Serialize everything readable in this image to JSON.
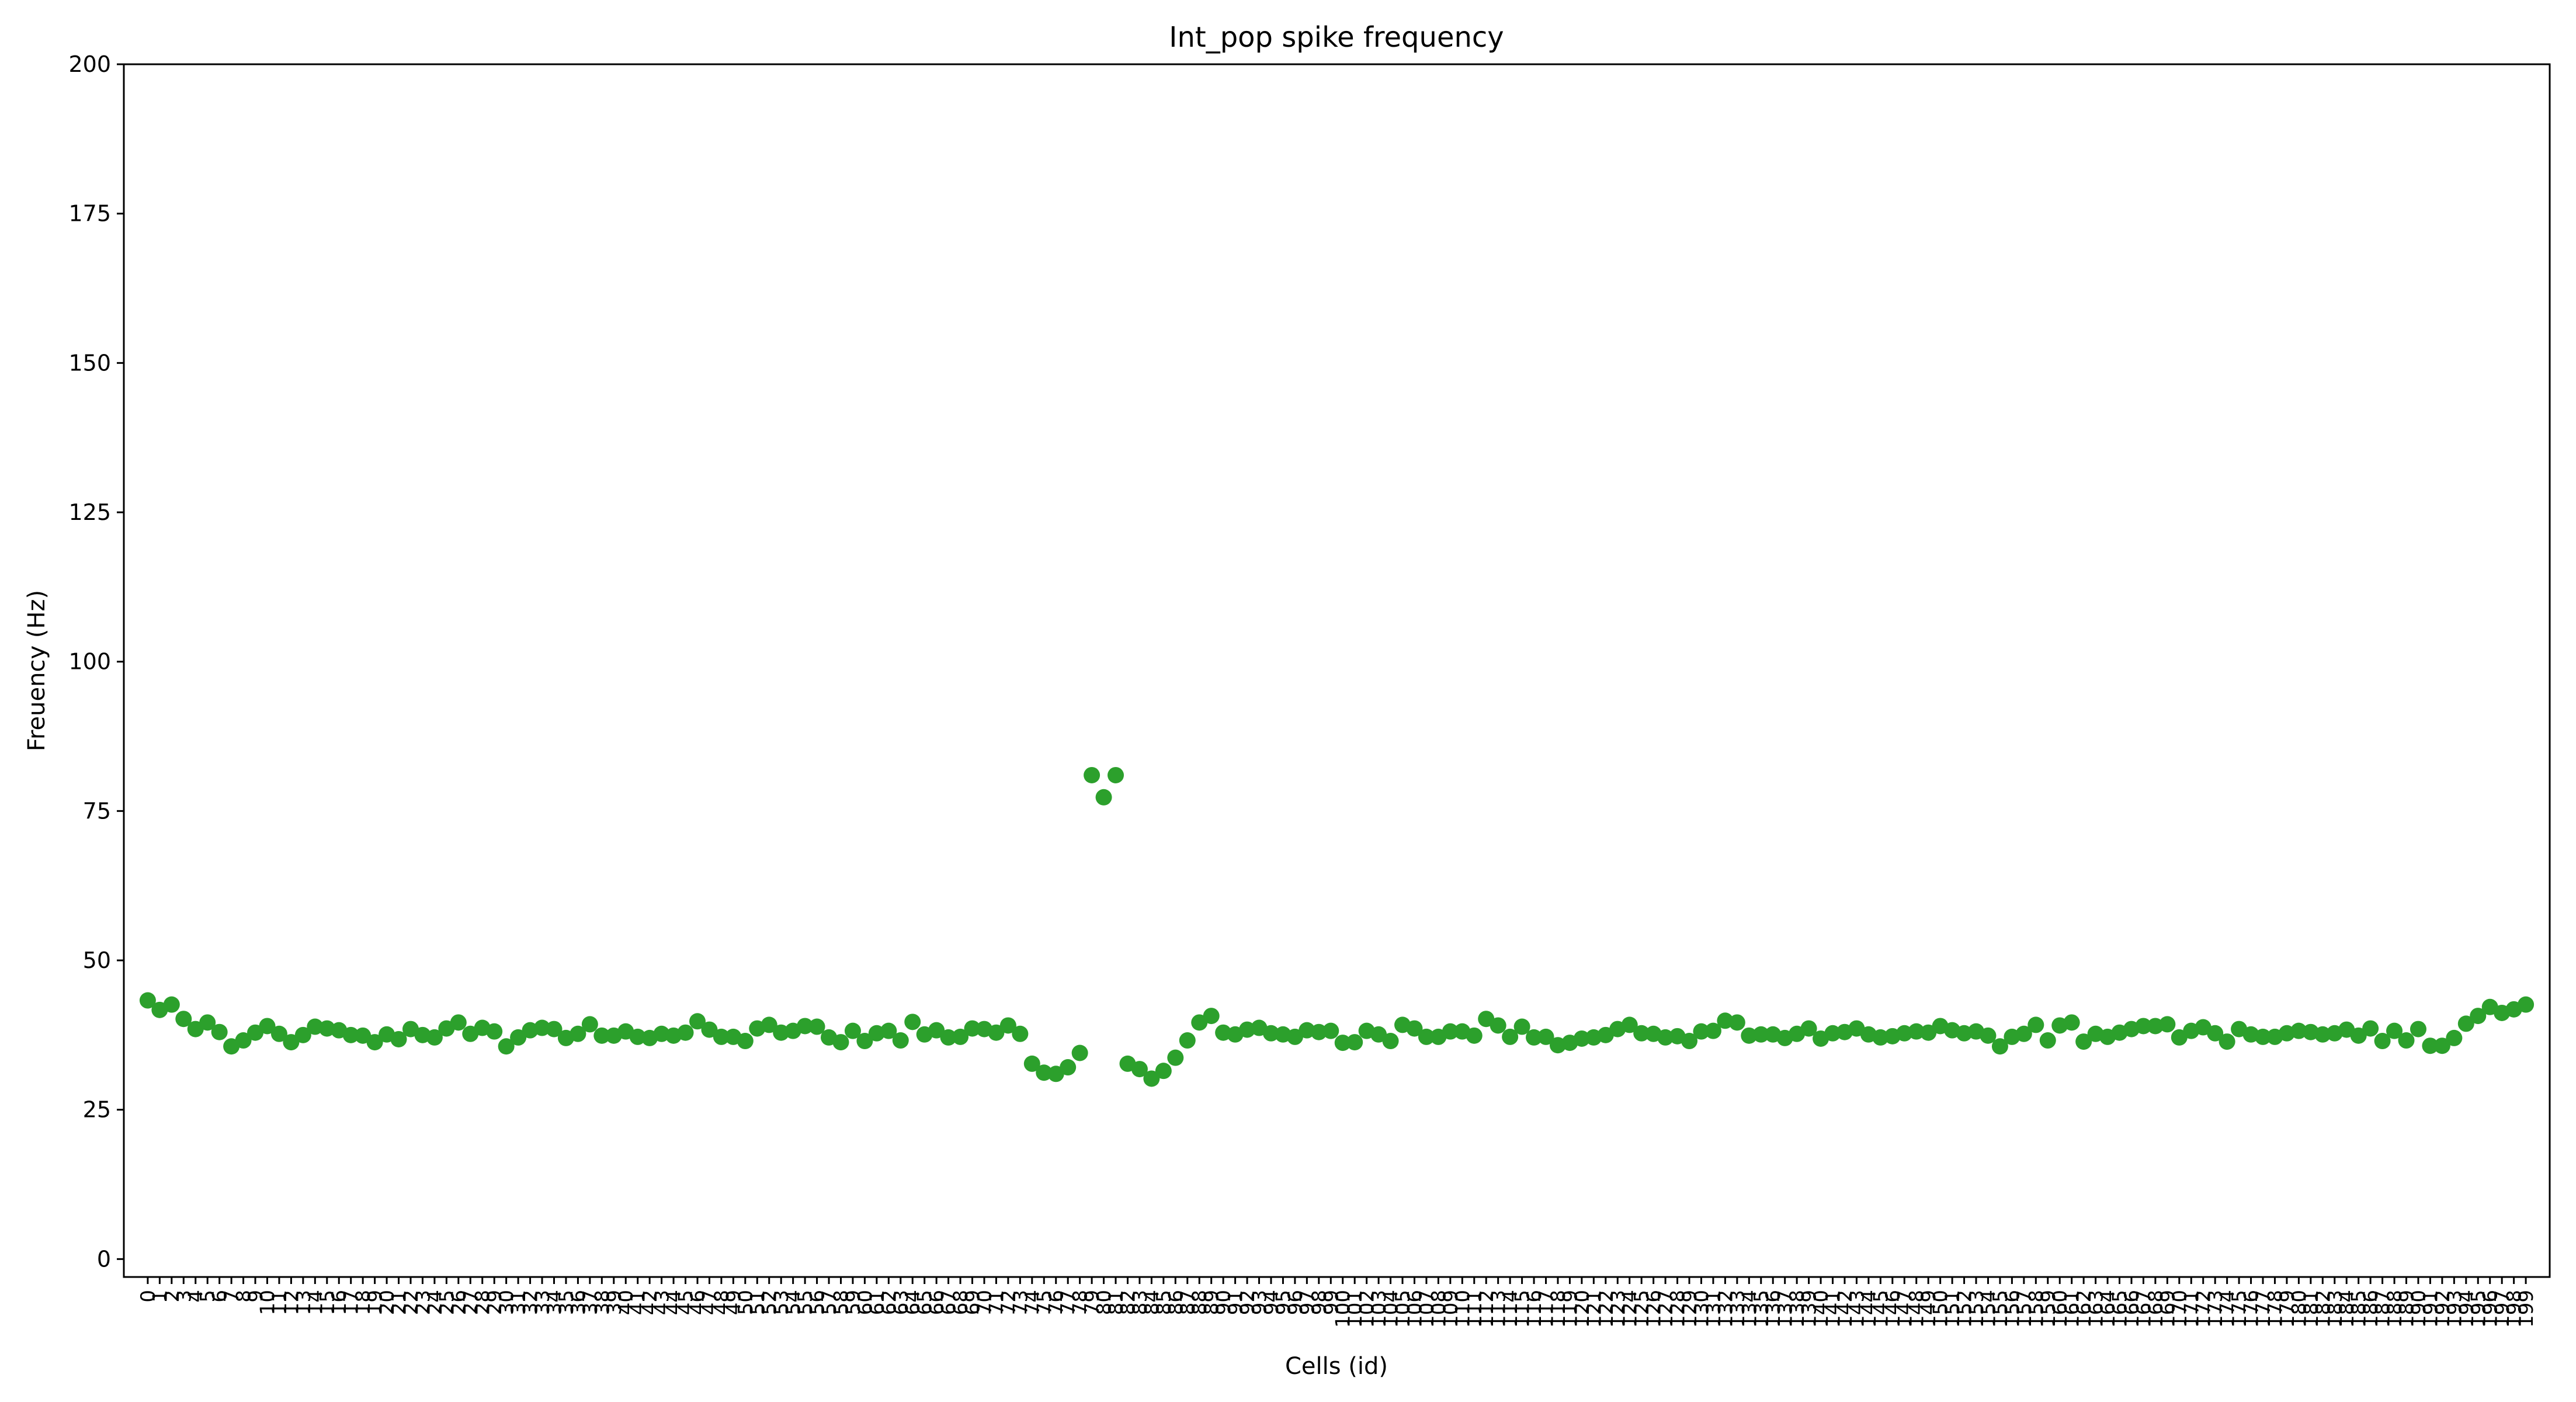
{
  "chart_data": {
    "type": "scatter",
    "title": "Int_pop spike frequency",
    "xlabel": "Cells (id)",
    "ylabel": "Freuency (Hz)",
    "xlim": [
      -2,
      201
    ],
    "ylim": [
      -3,
      200
    ],
    "y_ticks": [
      0,
      25,
      50,
      75,
      100,
      125,
      150,
      175,
      200
    ],
    "x_ticks": [
      0,
      1,
      2,
      3,
      4,
      5,
      6,
      7,
      8,
      9,
      10,
      11,
      12,
      13,
      14,
      15,
      16,
      17,
      18,
      19,
      20,
      21,
      22,
      23,
      24,
      25,
      26,
      27,
      28,
      29,
      30,
      31,
      32,
      33,
      34,
      35,
      36,
      37,
      38,
      39,
      40,
      41,
      42,
      43,
      44,
      45,
      46,
      47,
      48,
      49,
      50,
      51,
      52,
      53,
      54,
      55,
      56,
      57,
      58,
      59,
      60,
      61,
      62,
      63,
      64,
      65,
      66,
      67,
      68,
      69,
      70,
      71,
      72,
      73,
      74,
      75,
      76,
      77,
      78,
      79,
      80,
      81,
      82,
      83,
      84,
      85,
      86,
      87,
      88,
      89,
      90,
      91,
      92,
      93,
      94,
      95,
      96,
      97,
      98,
      99,
      100,
      101,
      102,
      103,
      104,
      105,
      106,
      107,
      108,
      109,
      110,
      111,
      112,
      113,
      114,
      115,
      116,
      117,
      118,
      119,
      120,
      121,
      122,
      123,
      124,
      125,
      126,
      127,
      128,
      129,
      130,
      131,
      132,
      133,
      134,
      135,
      136,
      137,
      138,
      139,
      140,
      141,
      142,
      143,
      144,
      145,
      146,
      147,
      148,
      149,
      150,
      151,
      152,
      153,
      154,
      155,
      156,
      157,
      158,
      159,
      160,
      161,
      162,
      163,
      164,
      165,
      166,
      167,
      168,
      169,
      170,
      171,
      172,
      173,
      174,
      175,
      176,
      177,
      178,
      179,
      180,
      181,
      182,
      183,
      184,
      185,
      186,
      187,
      188,
      189,
      190,
      191,
      192,
      193,
      194,
      195,
      196,
      197,
      198,
      199
    ],
    "grid": false,
    "marker_color": "#2ca02c",
    "series": [
      {
        "values": [
          43.3,
          41.7,
          42.6,
          40.2,
          38.5,
          39.6,
          38.0,
          35.6,
          36.6,
          37.9,
          39.0,
          37.7,
          36.3,
          37.5,
          38.9,
          38.6,
          38.3,
          37.5,
          37.4,
          36.3,
          37.6,
          36.8,
          38.5,
          37.5,
          37.1,
          38.6,
          39.6,
          37.7,
          38.7,
          38.1,
          35.6,
          37.1,
          38.3,
          38.7,
          38.5,
          37.0,
          37.7,
          39.3,
          37.4,
          37.4,
          38.1,
          37.2,
          37.0,
          37.7,
          37.4,
          37.9,
          39.8,
          38.4,
          37.2,
          37.2,
          36.5,
          38.6,
          39.2,
          37.9,
          38.2,
          39.0,
          38.9,
          37.1,
          36.3,
          38.2,
          36.5,
          37.8,
          38.2,
          36.6,
          39.7,
          37.6,
          38.3,
          37.1,
          37.2,
          38.6,
          38.5,
          37.9,
          39.1,
          37.7,
          32.7,
          31.2,
          31.0,
          32.1,
          34.5,
          81.0,
          77.3,
          81.0,
          32.7,
          31.8,
          30.2,
          31.5,
          33.7,
          36.6,
          39.6,
          40.7,
          37.9,
          37.6,
          38.4,
          38.7,
          37.8,
          37.6,
          37.2,
          38.3,
          38.0,
          38.2,
          36.2,
          36.3,
          38.2,
          37.6,
          36.5,
          39.2,
          38.6,
          37.2,
          37.2,
          38.1,
          38.1,
          37.4,
          40.2,
          39.1,
          37.2,
          38.9,
          37.1,
          37.2,
          35.8,
          36.2,
          36.9,
          37.1,
          37.5,
          38.5,
          39.2,
          37.8,
          37.7,
          37.1,
          37.3,
          36.5,
          38.1,
          38.2,
          39.9,
          39.6,
          37.4,
          37.6,
          37.6,
          37.0,
          37.7,
          38.6,
          36.9,
          37.8,
          38.0,
          38.6,
          37.6,
          37.1,
          37.3,
          37.8,
          38.1,
          37.9,
          39.0,
          38.3,
          37.8,
          38.1,
          37.4,
          35.6,
          37.2,
          37.7,
          39.2,
          36.6,
          39.1,
          39.6,
          36.4,
          37.7,
          37.2,
          37.9,
          38.5,
          39.0,
          39.0,
          39.3,
          37.1,
          38.2,
          38.8,
          37.8,
          36.4,
          38.5,
          37.6,
          37.2,
          37.2,
          37.8,
          38.2,
          38.0,
          37.6,
          37.8,
          38.4,
          37.4,
          38.6,
          36.5,
          38.2,
          36.6,
          38.5,
          35.7,
          35.7,
          37.0,
          39.4,
          40.7,
          42.2,
          41.2,
          41.8,
          42.6
        ]
      }
    ]
  }
}
